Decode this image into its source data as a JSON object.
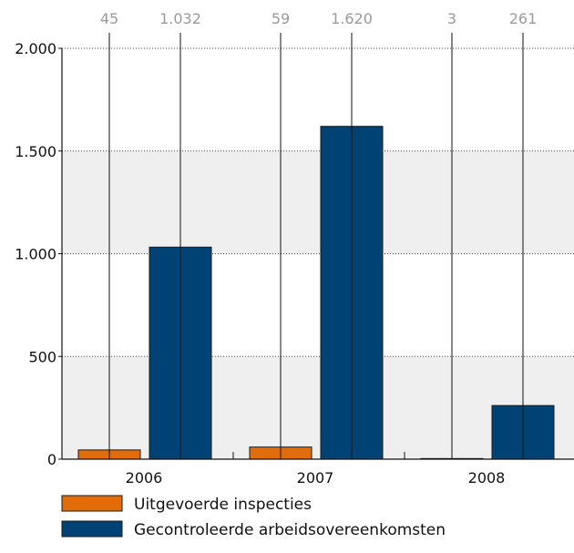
{
  "chart_data": {
    "type": "bar",
    "categories": [
      "2006",
      "2007",
      "2008"
    ],
    "series": [
      {
        "name": "Uitgevoerde inspecties",
        "values": [
          45,
          59,
          3
        ],
        "labels": [
          "45",
          "59",
          "3"
        ],
        "color": "#e36c0a"
      },
      {
        "name": "Gecontroleerde arbeidsovereenkomsten",
        "values": [
          1032,
          1620,
          261
        ],
        "labels": [
          "1.032",
          "1.620",
          "261"
        ],
        "color": "#004274"
      }
    ],
    "y_ticks": [
      {
        "value": 0,
        "label": "0"
      },
      {
        "value": 500,
        "label": "500"
      },
      {
        "value": 1000,
        "label": "1.000"
      },
      {
        "value": 1500,
        "label": "1.500"
      },
      {
        "value": 2000,
        "label": "2.000"
      }
    ],
    "ylim": [
      0,
      2000
    ],
    "grid": true,
    "legend_position": "bottom-left"
  }
}
